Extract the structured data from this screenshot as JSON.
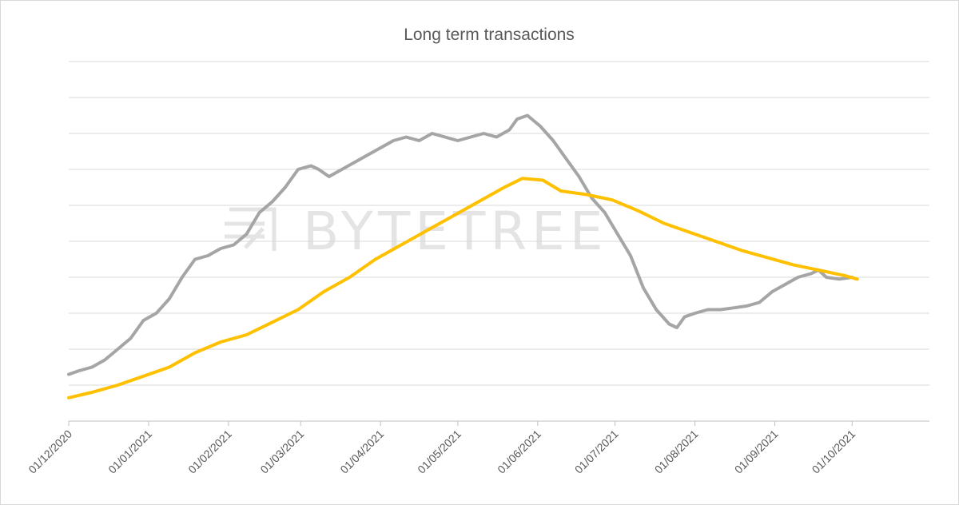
{
  "chart_data": {
    "type": "line",
    "title": "Long term transactions",
    "watermark": "BYTETREE",
    "xlabel": "",
    "ylabel": "",
    "x_ticks": [
      "01/12/2020",
      "01/01/2021",
      "01/02/2021",
      "01/03/2021",
      "01/04/2021",
      "01/05/2021",
      "01/06/2021",
      "01/07/2021",
      "01/08/2021",
      "01/09/2021",
      "01/10/2021"
    ],
    "xlim": [
      "2020-12-01",
      "2021-10-31"
    ],
    "ylim": [
      0,
      10
    ],
    "y_axis_labels_shown": false,
    "grid": true,
    "legend": "none",
    "colors": {
      "gray_series": "#a5a5a5",
      "gold_series": "#ffc000",
      "grid": "#d9d9d9",
      "axis": "#bfbfbf",
      "text": "#595959",
      "watermark": "#e4e4e4"
    },
    "series": [
      {
        "color": "#a5a5a5",
        "points": [
          [
            "2020-12-01",
            1.3
          ],
          [
            "2020-12-05",
            1.4
          ],
          [
            "2020-12-10",
            1.5
          ],
          [
            "2020-12-15",
            1.7
          ],
          [
            "2020-12-20",
            2.0
          ],
          [
            "2020-12-25",
            2.3
          ],
          [
            "2020-12-30",
            2.8
          ],
          [
            "2021-01-04",
            3.0
          ],
          [
            "2021-01-09",
            3.4
          ],
          [
            "2021-01-14",
            4.0
          ],
          [
            "2021-01-19",
            4.5
          ],
          [
            "2021-01-24",
            4.6
          ],
          [
            "2021-01-29",
            4.8
          ],
          [
            "2021-02-03",
            4.9
          ],
          [
            "2021-02-08",
            5.2
          ],
          [
            "2021-02-13",
            5.8
          ],
          [
            "2021-02-18",
            6.1
          ],
          [
            "2021-02-23",
            6.5
          ],
          [
            "2021-02-28",
            7.0
          ],
          [
            "2021-03-05",
            7.1
          ],
          [
            "2021-03-08",
            7.0
          ],
          [
            "2021-03-12",
            6.8
          ],
          [
            "2021-03-17",
            7.0
          ],
          [
            "2021-03-22",
            7.2
          ],
          [
            "2021-03-27",
            7.4
          ],
          [
            "2021-04-01",
            7.6
          ],
          [
            "2021-04-06",
            7.8
          ],
          [
            "2021-04-11",
            7.9
          ],
          [
            "2021-04-16",
            7.8
          ],
          [
            "2021-04-21",
            8.0
          ],
          [
            "2021-04-26",
            7.9
          ],
          [
            "2021-05-01",
            7.8
          ],
          [
            "2021-05-06",
            7.9
          ],
          [
            "2021-05-11",
            8.0
          ],
          [
            "2021-05-16",
            7.9
          ],
          [
            "2021-05-21",
            8.1
          ],
          [
            "2021-05-24",
            8.4
          ],
          [
            "2021-05-28",
            8.5
          ],
          [
            "2021-06-02",
            8.2
          ],
          [
            "2021-06-07",
            7.8
          ],
          [
            "2021-06-12",
            7.3
          ],
          [
            "2021-06-17",
            6.8
          ],
          [
            "2021-06-22",
            6.2
          ],
          [
            "2021-06-27",
            5.8
          ],
          [
            "2021-07-02",
            5.2
          ],
          [
            "2021-07-07",
            4.6
          ],
          [
            "2021-07-12",
            3.7
          ],
          [
            "2021-07-17",
            3.1
          ],
          [
            "2021-07-22",
            2.7
          ],
          [
            "2021-07-25",
            2.6
          ],
          [
            "2021-07-28",
            2.9
          ],
          [
            "2021-08-01",
            3.0
          ],
          [
            "2021-08-06",
            3.1
          ],
          [
            "2021-08-11",
            3.1
          ],
          [
            "2021-08-16",
            3.15
          ],
          [
            "2021-08-21",
            3.2
          ],
          [
            "2021-08-26",
            3.3
          ],
          [
            "2021-08-31",
            3.6
          ],
          [
            "2021-09-05",
            3.8
          ],
          [
            "2021-09-10",
            4.0
          ],
          [
            "2021-09-15",
            4.1
          ],
          [
            "2021-09-18",
            4.2
          ],
          [
            "2021-09-21",
            4.0
          ],
          [
            "2021-09-26",
            3.95
          ],
          [
            "2021-10-01",
            4.0
          ]
        ]
      },
      {
        "color": "#ffc000",
        "points": [
          [
            "2020-12-01",
            0.65
          ],
          [
            "2020-12-10",
            0.8
          ],
          [
            "2020-12-20",
            1.0
          ],
          [
            "2020-12-30",
            1.25
          ],
          [
            "2021-01-09",
            1.5
          ],
          [
            "2021-01-19",
            1.9
          ],
          [
            "2021-01-29",
            2.2
          ],
          [
            "2021-02-08",
            2.4
          ],
          [
            "2021-02-18",
            2.75
          ],
          [
            "2021-02-28",
            3.1
          ],
          [
            "2021-03-10",
            3.6
          ],
          [
            "2021-03-20",
            4.0
          ],
          [
            "2021-03-30",
            4.5
          ],
          [
            "2021-04-09",
            4.9
          ],
          [
            "2021-04-19",
            5.3
          ],
          [
            "2021-04-29",
            5.7
          ],
          [
            "2021-05-09",
            6.1
          ],
          [
            "2021-05-19",
            6.5
          ],
          [
            "2021-05-26",
            6.75
          ],
          [
            "2021-06-03",
            6.7
          ],
          [
            "2021-06-10",
            6.4
          ],
          [
            "2021-06-20",
            6.3
          ],
          [
            "2021-06-30",
            6.15
          ],
          [
            "2021-07-10",
            5.85
          ],
          [
            "2021-07-20",
            5.5
          ],
          [
            "2021-07-30",
            5.25
          ],
          [
            "2021-08-09",
            5.0
          ],
          [
            "2021-08-19",
            4.75
          ],
          [
            "2021-08-29",
            4.55
          ],
          [
            "2021-09-08",
            4.35
          ],
          [
            "2021-09-18",
            4.2
          ],
          [
            "2021-09-28",
            4.05
          ],
          [
            "2021-10-03",
            3.95
          ]
        ]
      }
    ]
  }
}
